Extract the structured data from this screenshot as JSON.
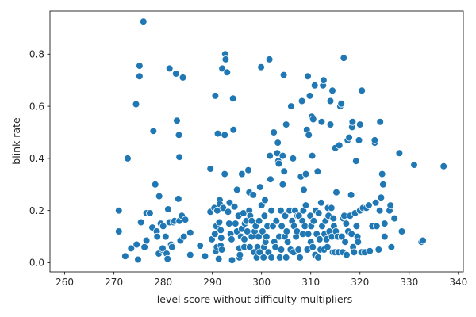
{
  "chart_data": {
    "type": "scatter",
    "title": "",
    "xlabel": "level score without difficulty multipliers",
    "ylabel": "blink rate",
    "xlim": [
      257,
      341
    ],
    "ylim": [
      -0.035,
      0.965
    ],
    "xticks": [
      260,
      270,
      280,
      290,
      300,
      310,
      320,
      330,
      340
    ],
    "yticks": [
      0.0,
      0.2,
      0.4,
      0.6,
      0.8
    ],
    "ytick_labels": [
      "0.0",
      "0.2",
      "0.4",
      "0.6",
      "0.8"
    ],
    "grid": false,
    "legend": false,
    "color": "#1f77b4",
    "points": [
      [
        276.0,
        0.925
      ],
      [
        275.2,
        0.755
      ],
      [
        275.2,
        0.715
      ],
      [
        274.5,
        0.608
      ],
      [
        272.8,
        0.4
      ],
      [
        271.0,
        0.2
      ],
      [
        271.0,
        0.12
      ],
      [
        272.3,
        0.025
      ],
      [
        273.5,
        0.055
      ],
      [
        274.6,
        0.07
      ],
      [
        274.9,
        0.012
      ],
      [
        275.5,
        0.155
      ],
      [
        276.2,
        0.06
      ],
      [
        276.6,
        0.19
      ],
      [
        276.6,
        0.085
      ],
      [
        277.3,
        0.19
      ],
      [
        277.8,
        0.135
      ],
      [
        278.0,
        0.505
      ],
      [
        278.4,
        0.3
      ],
      [
        278.7,
        0.12
      ],
      [
        278.8,
        0.1
      ],
      [
        279.1,
        0.035
      ],
      [
        279.2,
        0.255
      ],
      [
        279.5,
        0.15
      ],
      [
        279.8,
        0.05
      ],
      [
        279.9,
        0.055
      ],
      [
        280.0,
        0.14
      ],
      [
        280.5,
        0.1
      ],
      [
        280.7,
        0.035
      ],
      [
        280.9,
        0.015
      ],
      [
        281.0,
        0.205
      ],
      [
        281.3,
        0.745
      ],
      [
        281.3,
        0.155
      ],
      [
        281.6,
        0.07
      ],
      [
        281.8,
        0.06
      ],
      [
        282.1,
        0.155
      ],
      [
        282.3,
        0.16
      ],
      [
        282.6,
        0.725
      ],
      [
        282.8,
        0.545
      ],
      [
        283.1,
        0.245
      ],
      [
        283.2,
        0.49
      ],
      [
        283.3,
        0.405
      ],
      [
        283.3,
        0.16
      ],
      [
        283.5,
        0.085
      ],
      [
        283.8,
        0.18
      ],
      [
        284.0,
        0.71
      ],
      [
        284.2,
        0.1
      ],
      [
        284.5,
        0.165
      ],
      [
        285.5,
        0.115
      ],
      [
        285.5,
        0.03
      ],
      [
        287.5,
        0.065
      ],
      [
        288.5,
        0.025
      ],
      [
        289.6,
        0.36
      ],
      [
        289.6,
        0.195
      ],
      [
        289.9,
        0.09
      ],
      [
        290.4,
        0.21
      ],
      [
        290.5,
        0.11
      ],
      [
        290.6,
        0.64
      ],
      [
        290.7,
        0.045
      ],
      [
        290.8,
        0.14
      ],
      [
        290.9,
        0.06
      ],
      [
        291.0,
        0.2
      ],
      [
        291.1,
        0.495
      ],
      [
        291.3,
        0.015
      ],
      [
        291.4,
        0.155
      ],
      [
        291.5,
        0.24
      ],
      [
        291.5,
        0.225
      ],
      [
        291.7,
        0.125
      ],
      [
        291.7,
        0.065
      ],
      [
        291.8,
        0.095
      ],
      [
        291.9,
        0.05
      ],
      [
        292.0,
        0.745
      ],
      [
        292.2,
        0.21
      ],
      [
        292.5,
        0.34
      ],
      [
        292.5,
        0.49
      ],
      [
        292.6,
        0.8
      ],
      [
        292.7,
        0.78
      ],
      [
        293.0,
        0.73
      ],
      [
        293.2,
        0.195
      ],
      [
        293.4,
        0.15
      ],
      [
        293.5,
        0.23
      ],
      [
        293.7,
        0.11
      ],
      [
        293.9,
        0.09
      ],
      [
        294.0,
        0.01
      ],
      [
        294.2,
        0.63
      ],
      [
        294.3,
        0.51
      ],
      [
        294.5,
        0.215
      ],
      [
        294.7,
        0.15
      ],
      [
        295.0,
        0.12
      ],
      [
        295.0,
        0.28
      ],
      [
        295.3,
        0.18
      ],
      [
        295.5,
        0.055
      ],
      [
        295.5,
        0.02
      ],
      [
        295.6,
        0.03
      ],
      [
        295.8,
        0.1
      ],
      [
        296.0,
        0.13
      ],
      [
        296.0,
        0.34
      ],
      [
        296.3,
        0.19
      ],
      [
        296.5,
        0.06
      ],
      [
        296.5,
        0.09
      ],
      [
        296.6,
        0.15
      ],
      [
        296.9,
        0.16
      ],
      [
        297.1,
        0.12
      ],
      [
        297.3,
        0.355
      ],
      [
        297.5,
        0.2
      ],
      [
        297.5,
        0.27
      ],
      [
        297.6,
        0.06
      ],
      [
        297.7,
        0.18
      ],
      [
        298.0,
        0.1
      ],
      [
        298.0,
        0.16
      ],
      [
        298.3,
        0.26
      ],
      [
        298.5,
        0.04
      ],
      [
        298.6,
        0.12
      ],
      [
        298.8,
        0.14
      ],
      [
        299.0,
        0.02
      ],
      [
        299.2,
        0.06
      ],
      [
        299.4,
        0.1
      ],
      [
        299.5,
        0.16
      ],
      [
        299.6,
        0.04
      ],
      [
        299.7,
        0.29
      ],
      [
        299.9,
        0.75
      ],
      [
        300.0,
        0.22
      ],
      [
        300.2,
        0.12
      ],
      [
        300.4,
        0.02
      ],
      [
        300.5,
        0.06
      ],
      [
        300.6,
        0.18
      ],
      [
        300.7,
        0.24
      ],
      [
        300.8,
        0.08
      ],
      [
        301.0,
        0.1
      ],
      [
        301.2,
        0.14
      ],
      [
        301.4,
        0.04
      ],
      [
        301.6,
        0.78
      ],
      [
        301.7,
        0.41
      ],
      [
        301.8,
        0.32
      ],
      [
        302.0,
        0.2
      ],
      [
        302.0,
        0.02
      ],
      [
        302.3,
        0.14
      ],
      [
        302.5,
        0.5
      ],
      [
        302.6,
        0.08
      ],
      [
        302.8,
        0.06
      ],
      [
        303.0,
        0.16
      ],
      [
        303.2,
        0.42
      ],
      [
        303.3,
        0.46
      ],
      [
        303.4,
        0.39
      ],
      [
        303.5,
        0.38
      ],
      [
        303.6,
        0.1
      ],
      [
        303.7,
        0.02
      ],
      [
        303.9,
        0.2
      ],
      [
        304.0,
        0.05
      ],
      [
        304.1,
        0.14
      ],
      [
        304.3,
        0.3
      ],
      [
        304.3,
        0.41
      ],
      [
        304.5,
        0.72
      ],
      [
        304.6,
        0.35
      ],
      [
        304.7,
        0.1
      ],
      [
        304.8,
        0.18
      ],
      [
        305.0,
        0.53
      ],
      [
        305.0,
        0.02
      ],
      [
        305.1,
        0.12
      ],
      [
        305.3,
        0.08
      ],
      [
        305.5,
        0.2
      ],
      [
        305.7,
        0.2
      ],
      [
        305.9,
        0.05
      ],
      [
        306.0,
        0.6
      ],
      [
        306.2,
        0.16
      ],
      [
        306.4,
        0.4
      ],
      [
        306.5,
        0.04
      ],
      [
        306.6,
        0.14
      ],
      [
        306.8,
        0.2
      ],
      [
        307.0,
        0.1
      ],
      [
        307.2,
        0.12
      ],
      [
        307.3,
        0.18
      ],
      [
        307.5,
        0.05
      ],
      [
        307.6,
        0.18
      ],
      [
        307.8,
        0.02
      ],
      [
        308.0,
        0.33
      ],
      [
        308.2,
        0.62
      ],
      [
        308.3,
        0.16
      ],
      [
        308.4,
        0.11
      ],
      [
        308.5,
        0.2
      ],
      [
        308.6,
        0.28
      ],
      [
        308.8,
        0.14
      ],
      [
        309.0,
        0.34
      ],
      [
        309.0,
        0.22
      ],
      [
        309.2,
        0.51
      ],
      [
        309.3,
        0.05
      ],
      [
        309.4,
        0.715
      ],
      [
        309.5,
        0.11
      ],
      [
        309.6,
        0.49
      ],
      [
        309.8,
        0.64
      ],
      [
        309.9,
        0.18
      ],
      [
        310.0,
        0.08
      ],
      [
        310.1,
        0.14
      ],
      [
        310.2,
        0.56
      ],
      [
        310.3,
        0.41
      ],
      [
        310.4,
        0.06
      ],
      [
        310.5,
        0.55
      ],
      [
        310.6,
        0.16
      ],
      [
        310.8,
        0.68
      ],
      [
        310.9,
        0.03
      ],
      [
        311.0,
        0.2
      ],
      [
        311.2,
        0.11
      ],
      [
        311.4,
        0.35
      ],
      [
        311.5,
        0.02
      ],
      [
        311.6,
        0.19
      ],
      [
        311.8,
        0.09
      ],
      [
        312.0,
        0.05
      ],
      [
        312.1,
        0.23
      ],
      [
        312.2,
        0.54
      ],
      [
        312.3,
        0.14
      ],
      [
        312.5,
        0.68
      ],
      [
        312.6,
        0.7
      ],
      [
        312.7,
        0.05
      ],
      [
        312.8,
        0.11
      ],
      [
        313.0,
        0.16
      ],
      [
        313.2,
        0.09
      ],
      [
        313.4,
        0.06
      ],
      [
        313.5,
        0.21
      ],
      [
        313.6,
        0.18
      ],
      [
        313.8,
        0.12
      ],
      [
        314.0,
        0.53
      ],
      [
        314.0,
        0.62
      ],
      [
        314.2,
        0.21
      ],
      [
        314.3,
        0.1
      ],
      [
        314.4,
        0.66
      ],
      [
        314.5,
        0.04
      ],
      [
        314.6,
        0.17
      ],
      [
        314.7,
        0.14
      ],
      [
        314.9,
        0.04
      ],
      [
        315.0,
        0.44
      ],
      [
        315.1,
        0.12
      ],
      [
        315.2,
        0.27
      ],
      [
        315.5,
        0.1
      ],
      [
        315.6,
        0.04
      ],
      [
        315.8,
        0.45
      ],
      [
        316.0,
        0.6
      ],
      [
        316.2,
        0.61
      ],
      [
        316.3,
        0.1
      ],
      [
        316.5,
        0.04
      ],
      [
        316.6,
        0.17
      ],
      [
        316.7,
        0.785
      ],
      [
        316.8,
        0.18
      ],
      [
        317.0,
        0.08
      ],
      [
        317.2,
        0.15
      ],
      [
        317.3,
        0.03
      ],
      [
        317.5,
        0.47
      ],
      [
        317.6,
        0.12
      ],
      [
        317.8,
        0.48
      ],
      [
        318.0,
        0.18
      ],
      [
        318.2,
        0.26
      ],
      [
        318.3,
        0.11
      ],
      [
        318.4,
        0.52
      ],
      [
        318.5,
        0.54
      ],
      [
        318.6,
        0.06
      ],
      [
        318.8,
        0.04
      ],
      [
        319.0,
        0.19
      ],
      [
        319.2,
        0.39
      ],
      [
        319.3,
        0.14
      ],
      [
        319.5,
        0.1
      ],
      [
        319.6,
        0.08
      ],
      [
        319.8,
        0.47
      ],
      [
        320.0,
        0.2
      ],
      [
        320.0,
        0.53
      ],
      [
        320.3,
        0.04
      ],
      [
        320.4,
        0.66
      ],
      [
        320.6,
        0.21
      ],
      [
        321.0,
        0.04
      ],
      [
        321.3,
        0.21
      ],
      [
        321.8,
        0.22
      ],
      [
        322.0,
        0.045
      ],
      [
        322.5,
        0.14
      ],
      [
        323.0,
        0.46
      ],
      [
        323.0,
        0.47
      ],
      [
        323.2,
        0.23
      ],
      [
        323.4,
        0.14
      ],
      [
        323.8,
        0.05
      ],
      [
        324.0,
        0.2
      ],
      [
        324.1,
        0.54
      ],
      [
        324.3,
        0.25
      ],
      [
        324.5,
        0.34
      ],
      [
        324.7,
        0.3
      ],
      [
        325.0,
        0.15
      ],
      [
        325.0,
        0.1
      ],
      [
        326.0,
        0.2
      ],
      [
        326.2,
        0.22
      ],
      [
        326.4,
        0.06
      ],
      [
        327.0,
        0.17
      ],
      [
        328.0,
        0.42
      ],
      [
        328.5,
        0.12
      ],
      [
        331.0,
        0.375
      ],
      [
        332.5,
        0.08
      ],
      [
        332.8,
        0.085
      ],
      [
        337.0,
        0.37
      ]
    ]
  }
}
